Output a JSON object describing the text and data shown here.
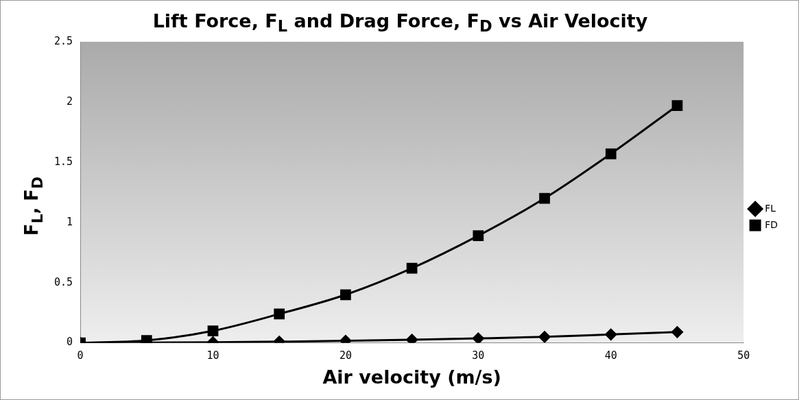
{
  "chart_data": {
    "type": "line",
    "title": "Lift Force, F$_{L}$ and Drag Force, F$_{D}$ vs Air Velocity",
    "xlabel": "Air velocity (m/s)",
    "ylabel": "F$_{L}$, F$_{D}$",
    "x": [
      0,
      5,
      10,
      15,
      20,
      25,
      30,
      35,
      40,
      45
    ],
    "series": [
      {
        "name": "FL",
        "color": "#000000",
        "marker": "diamond",
        "values": [
          0,
          0.002,
          0.005,
          0.01,
          0.017,
          0.026,
          0.037,
          0.05,
          0.07,
          0.09
        ]
      },
      {
        "name": "FD",
        "color": "#000000",
        "marker": "square",
        "values": [
          0,
          0.02,
          0.1,
          0.24,
          0.4,
          0.62,
          0.89,
          1.2,
          1.57,
          1.97
        ]
      }
    ],
    "xlim": [
      0,
      50
    ],
    "xticks": [
      0,
      10,
      20,
      30,
      40,
      50
    ],
    "ylim": [
      0,
      2.5
    ],
    "yticks": [
      0,
      0.5,
      1,
      1.5,
      2,
      2.5
    ],
    "grid": false,
    "legend": "right",
    "line_style": "solid"
  }
}
